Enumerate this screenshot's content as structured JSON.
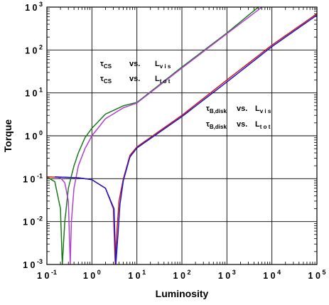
{
  "chart_data": {
    "type": "line",
    "xlabel": "Luminosity",
    "ylabel": "Torque",
    "xscale": "log",
    "yscale": "log",
    "xlim": [
      0.1,
      100000
    ],
    "ylim": [
      0.001,
      1000
    ],
    "grid": true,
    "x_ticks": [
      {
        "base": "1 0",
        "exp": "-1"
      },
      {
        "base": "1 0",
        "exp": "0"
      },
      {
        "base": "1 0",
        "exp": "1"
      },
      {
        "base": "1 0",
        "exp": "2"
      },
      {
        "base": "1 0",
        "exp": "3"
      },
      {
        "base": "1 0",
        "exp": "4"
      },
      {
        "base": "1 0",
        "exp": "5"
      }
    ],
    "y_ticks": [
      {
        "base": "1 0",
        "exp": "-3"
      },
      {
        "base": "1 0",
        "exp": "-2"
      },
      {
        "base": "1 0",
        "exp": "-1"
      },
      {
        "base": "1 0",
        "exp": "0"
      },
      {
        "base": "1 0",
        "exp": "1"
      },
      {
        "base": "1 0",
        "exp": "2"
      },
      {
        "base": "1 0",
        "exp": "3"
      }
    ],
    "annotations": [
      {
        "tau": "τ",
        "sub": "CS",
        "vs": "vs.",
        "L": "L",
        "Lsub": "v i s"
      },
      {
        "tau": "τ",
        "sub": "CS",
        "vs": "vs.",
        "L": "L",
        "Lsub": "t o t"
      },
      {
        "tau": "τ",
        "sub": "B,disk",
        "vs": "vs.",
        "L": "L",
        "Lsub": "v i s"
      },
      {
        "tau": "τ",
        "sub": "B,disk",
        "vs": "vs.",
        "L": "L",
        "Lsub": "t o t"
      }
    ],
    "series": [
      {
        "color": "#1a7a1a",
        "x": [
          0.1,
          0.15,
          0.2,
          0.22,
          0.25,
          0.3,
          0.4,
          0.5,
          0.7,
          1,
          2,
          5,
          10,
          100,
          1000,
          5000
        ],
        "y": [
          0.11,
          0.085,
          0.02,
          0.001,
          0.01,
          0.06,
          0.2,
          0.4,
          0.9,
          1.5,
          3.2,
          5,
          6,
          40,
          250,
          1000
        ]
      },
      {
        "color": "#b040d0",
        "x": [
          0.15,
          0.2,
          0.25,
          0.3,
          0.33,
          0.35,
          0.4,
          0.5,
          0.7,
          1,
          2,
          5,
          10,
          100,
          1000,
          6000
        ],
        "y": [
          0.11,
          0.105,
          0.08,
          0.03,
          0.001,
          0.01,
          0.06,
          0.2,
          0.5,
          1,
          2.5,
          4.5,
          5.8,
          38,
          240,
          1000
        ]
      },
      {
        "color": "#d01818",
        "x": [
          0.1,
          0.5,
          1,
          2,
          3,
          3.3,
          3.6,
          4,
          5,
          7,
          10,
          100,
          1000,
          10000,
          100000
        ],
        "y": [
          0.11,
          0.105,
          0.095,
          0.06,
          0.02,
          0.001,
          0.006,
          0.03,
          0.1,
          0.35,
          0.55,
          3,
          20,
          130,
          700
        ]
      },
      {
        "color": "#1a1ad0",
        "x": [
          0.15,
          0.5,
          1,
          2,
          3.1,
          3.4,
          3.8,
          4.2,
          5,
          7,
          10,
          100,
          1000,
          10000,
          100000
        ],
        "y": [
          0.11,
          0.105,
          0.095,
          0.06,
          0.02,
          0.001,
          0.005,
          0.025,
          0.09,
          0.32,
          0.52,
          2.8,
          18,
          120,
          650
        ]
      }
    ]
  }
}
